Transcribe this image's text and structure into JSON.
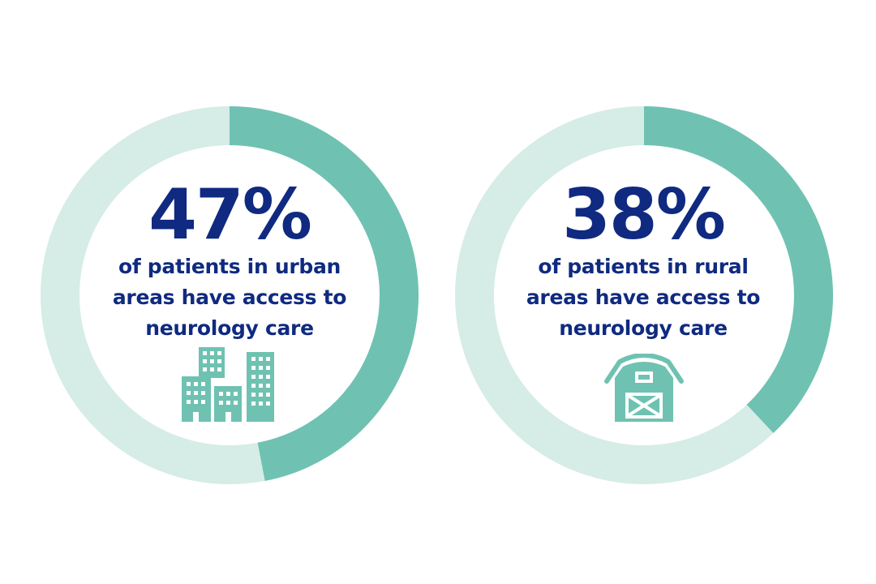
{
  "colors": {
    "track": "#d6ece7",
    "fill": "#6fc2b2",
    "text": "#0f2a80",
    "icon": "#6fc2b2",
    "background": "#ffffff"
  },
  "chart_data": [
    {
      "type": "pie",
      "variant": "donut",
      "value_percent": 47,
      "label": "47%",
      "description": "of patients in urban areas have access to neurology care",
      "description_lines": [
        "of patients in urban",
        "areas have access to",
        "neurology care"
      ],
      "icon": "city-buildings-icon"
    },
    {
      "type": "pie",
      "variant": "donut",
      "value_percent": 38,
      "label": "38%",
      "description": "of patients in rural areas have access to neurology care",
      "description_lines": [
        "of patients in rural",
        "areas have access to",
        "neurology care"
      ],
      "icon": "barn-icon"
    }
  ]
}
